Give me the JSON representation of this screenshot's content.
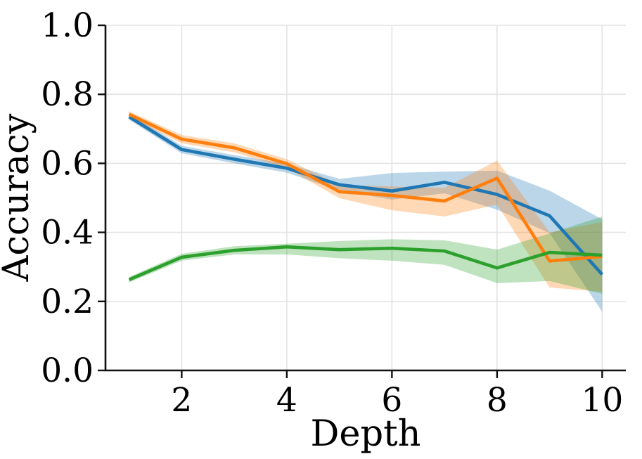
{
  "figure": {
    "background": "#ffffff"
  },
  "chart_data": {
    "type": "line",
    "title": "",
    "xlabel": "Depth",
    "ylabel": "Accuracy",
    "x": [
      1,
      2,
      3,
      4,
      5,
      6,
      7,
      8,
      9,
      10
    ],
    "xlim": [
      0.55,
      10.45
    ],
    "ylim": [
      0.0,
      1.0
    ],
    "xticks": [
      2,
      4,
      6,
      8,
      10
    ],
    "xtick_labels": [
      "2",
      "4",
      "6",
      "8",
      "10"
    ],
    "yticks": [
      0.0,
      0.2,
      0.4,
      0.6,
      0.8,
      1.0
    ],
    "ytick_labels": [
      "0.0",
      "0.2",
      "0.4",
      "0.6",
      "0.8",
      "1.0"
    ],
    "grid": true,
    "legend": "none",
    "band_opacity": 0.3,
    "series": [
      {
        "name": "blue",
        "color": "#1f77b4",
        "values": [
          0.735,
          0.64,
          0.612,
          0.586,
          0.538,
          0.52,
          0.545,
          0.51,
          0.448,
          0.278
        ],
        "lower": [
          0.726,
          0.629,
          0.6,
          0.573,
          0.521,
          0.495,
          0.513,
          0.466,
          0.398,
          0.17
        ],
        "upper": [
          0.744,
          0.651,
          0.624,
          0.599,
          0.555,
          0.572,
          0.576,
          0.579,
          0.521,
          0.438
        ]
      },
      {
        "name": "orange",
        "color": "#ff7f0e",
        "values": [
          0.742,
          0.67,
          0.645,
          0.599,
          0.518,
          0.507,
          0.491,
          0.557,
          0.317,
          0.33
        ],
        "lower": [
          0.733,
          0.658,
          0.632,
          0.586,
          0.499,
          0.464,
          0.446,
          0.481,
          0.24,
          0.228
        ],
        "upper": [
          0.751,
          0.682,
          0.658,
          0.612,
          0.537,
          0.533,
          0.529,
          0.608,
          0.4,
          0.43
        ]
      },
      {
        "name": "green",
        "color": "#2ca02c",
        "values": [
          0.263,
          0.328,
          0.348,
          0.358,
          0.35,
          0.354,
          0.346,
          0.297,
          0.342,
          0.334
        ],
        "lower": [
          0.255,
          0.318,
          0.336,
          0.336,
          0.325,
          0.318,
          0.306,
          0.253,
          0.259,
          0.222
        ],
        "upper": [
          0.271,
          0.338,
          0.36,
          0.367,
          0.375,
          0.38,
          0.377,
          0.35,
          0.397,
          0.446
        ]
      }
    ]
  }
}
